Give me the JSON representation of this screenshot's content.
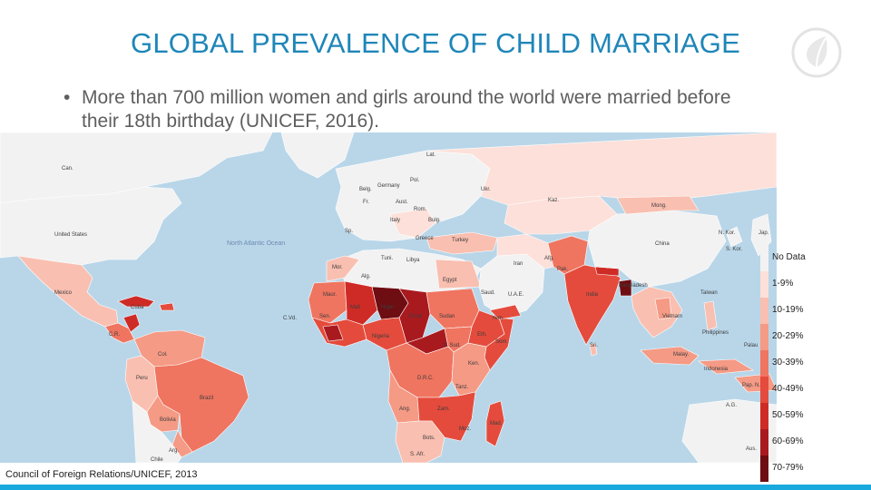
{
  "slide": {
    "title": "GLOBAL PREVALENCE OF CHILD MARRIAGE",
    "bullet": "More than 700 million women and girls around the world were married before their 18th birthday (UNICEF, 2016).",
    "bullet_marker": "•",
    "source": "Council of Foreign Relations/UNICEF, 2013",
    "logo_icon": "leaf-circle-icon"
  },
  "colors": {
    "title": "#1f86b8",
    "ocean": "#b9d6e9",
    "land_no_data": "#f2f2f2",
    "accent_bar": "#19a9dd"
  },
  "legend": [
    {
      "label": "No Data",
      "color": "#f2f2f2"
    },
    {
      "label": "1-9%",
      "color": "#fde0d9"
    },
    {
      "label": "10-19%",
      "color": "#f9bfb0"
    },
    {
      "label": "20-29%",
      "color": "#f59a85"
    },
    {
      "label": "30-39%",
      "color": "#ef7560"
    },
    {
      "label": "40-49%",
      "color": "#e44b3c"
    },
    {
      "label": "50-59%",
      "color": "#cf2b26"
    },
    {
      "label": "60-69%",
      "color": "#a91a1f"
    },
    {
      "label": "70-79%",
      "color": "#6e0d12"
    }
  ],
  "map_labels": {
    "ocean": "North Atlantic Ocean",
    "countries": [
      "Can.",
      "United States",
      "Mexico",
      "Cuba",
      "C.R.",
      "Col.",
      "Peru",
      "Brazil",
      "Bolivia",
      "Chile",
      "Arg.",
      "Lat.",
      "Pol.",
      "Germany",
      "Fr.",
      "Aust.",
      "Rom.",
      "Bulg.",
      "Italy",
      "Sp.",
      "Greece",
      "Turkey",
      "Tuni.",
      "Alg.",
      "Libya",
      "Egypt",
      "Saud.",
      "Iran",
      "Kaz.",
      "Mong.",
      "China",
      "N. Kor.",
      "S. Kor.",
      "Jap.",
      "Afg.",
      "Pak.",
      "India",
      "Bangladesh",
      "Taiwan",
      "Vietnam",
      "Philippines",
      "Malay.",
      "Indonesia",
      "Sri.",
      "U.A.E.",
      "Yem.",
      "Mali",
      "Niger",
      "Chad",
      "Sudan",
      "Eth.",
      "Nigeria",
      "S. Sud.",
      "D.R.C.",
      "Tanz.",
      "Ang.",
      "Bots.",
      "S. Afr.",
      "Mad.",
      "Moz.",
      "Zam.",
      "Ken.",
      "Som.",
      "Maur.",
      "Sen.",
      "C.Vd.",
      "Ukr.",
      "Belg.",
      "Mor.",
      "Pap. N.G.",
      "A.G.",
      "Aus.",
      "Palau"
    ]
  }
}
